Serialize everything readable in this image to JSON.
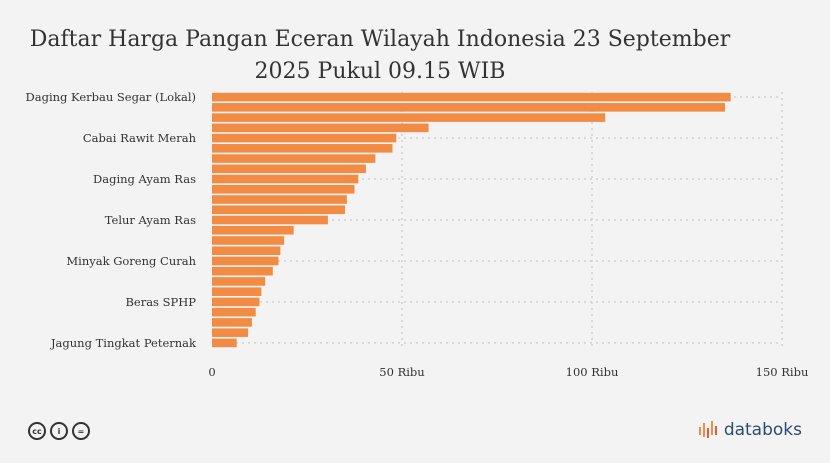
{
  "chart_data": {
    "type": "bar",
    "orientation": "horizontal",
    "title": "Daftar Harga Pangan Eceran Wilayah Indonesia 23 September 2025 Pukul 09.15 WIB",
    "categories": [
      "Daging Kerbau Segar (Lokal)",
      "",
      "",
      "",
      "Cabai Rawit Merah",
      "",
      "",
      "",
      "Daging Ayam Ras",
      "",
      "",
      "",
      "Telur Ayam Ras",
      "",
      "",
      "",
      "Minyak Goreng Curah",
      "",
      "",
      "",
      "Beras SPHP",
      "",
      "",
      "",
      "Jagung Tingkat Peternak"
    ],
    "values": [
      136500,
      135000,
      103500,
      57000,
      48500,
      47500,
      43000,
      40500,
      38500,
      37500,
      35500,
      35000,
      30500,
      21500,
      19000,
      18000,
      17500,
      16000,
      14000,
      13000,
      12500,
      11500,
      10500,
      9500,
      6500
    ],
    "xlim": [
      0,
      150000
    ],
    "xticks": [
      {
        "value": 0,
        "label": "0"
      },
      {
        "value": 50000,
        "label": "50 Ribu"
      },
      {
        "value": 100000,
        "label": "100 Ribu"
      },
      {
        "value": 150000,
        "label": "150 Ribu"
      }
    ],
    "xlabel": "",
    "ylabel": "",
    "grid": true,
    "bar_color": "#f28c45",
    "grid_color": "#cfcfcf"
  },
  "footer": {
    "icons": [
      {
        "name": "creative-commons-icon",
        "glyph": "cc"
      },
      {
        "name": "attribution-icon",
        "glyph": "i"
      },
      {
        "name": "no-derivatives-icon",
        "glyph": "="
      }
    ],
    "brand": "databoks",
    "brand_color": "#2d4a73",
    "brand_accent": "#f28c45"
  }
}
